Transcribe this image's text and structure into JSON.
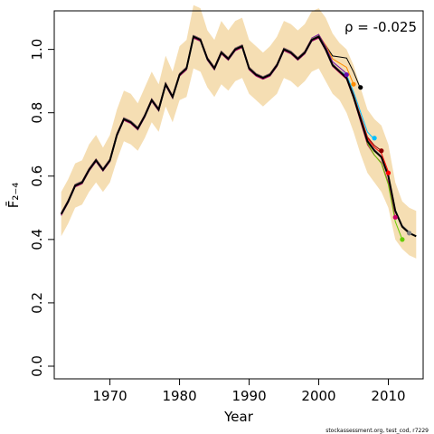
{
  "chart_data": {
    "type": "line",
    "ylabel": "F̄₂₋₄",
    "xlabel": "Year",
    "annotation": "ρ = -0.025",
    "footer": "stockassessment.org, test_cod, r7229",
    "xlim": [
      1962,
      2015
    ],
    "ylim": [
      0,
      1.15
    ],
    "xticks": [
      1970,
      1980,
      1990,
      2000,
      2010
    ],
    "yticks": [
      "0.0",
      "0.2",
      "0.4",
      "0.6",
      "0.8",
      "1.0"
    ],
    "colors": {
      "band": "#f5deb3",
      "main": "#000000",
      "peels": [
        "#6a0dad",
        "#e75480",
        "#ff8c00",
        "#00bfff",
        "#8b0000",
        "#ff0000",
        "#cc0066",
        "#66cc00",
        "#808080"
      ]
    },
    "x": [
      1963,
      1964,
      1965,
      1966,
      1967,
      1968,
      1969,
      1970,
      1971,
      1972,
      1973,
      1974,
      1975,
      1976,
      1977,
      1978,
      1979,
      1980,
      1981,
      1982,
      1983,
      1984,
      1985,
      1986,
      1987,
      1988,
      1989,
      1990,
      1991,
      1992,
      1993,
      1994,
      1995,
      1996,
      1997,
      1998,
      1999,
      2000,
      2001,
      2002,
      2003,
      2004,
      2005,
      2006,
      2007,
      2008,
      2009,
      2010,
      2011,
      2012,
      2013,
      2014
    ],
    "estimate": [
      0.48,
      0.52,
      0.57,
      0.58,
      0.62,
      0.65,
      0.62,
      0.65,
      0.73,
      0.78,
      0.77,
      0.75,
      0.79,
      0.84,
      0.81,
      0.89,
      0.85,
      0.92,
      0.94,
      1.04,
      1.03,
      0.97,
      0.94,
      0.99,
      0.97,
      1.0,
      1.01,
      0.94,
      0.92,
      0.91,
      0.92,
      0.95,
      1.0,
      0.99,
      0.97,
      0.99,
      1.03,
      1.04,
      1.0,
      0.95,
      0.93,
      0.91,
      0.85,
      0.78,
      0.71,
      0.68,
      0.66,
      0.6,
      0.49,
      0.44,
      0.42,
      0.41
    ],
    "lower": [
      0.41,
      0.45,
      0.5,
      0.51,
      0.55,
      0.58,
      0.55,
      0.58,
      0.65,
      0.71,
      0.7,
      0.68,
      0.72,
      0.77,
      0.74,
      0.82,
      0.77,
      0.84,
      0.85,
      0.94,
      0.93,
      0.88,
      0.85,
      0.89,
      0.87,
      0.9,
      0.91,
      0.86,
      0.84,
      0.82,
      0.84,
      0.86,
      0.91,
      0.9,
      0.88,
      0.9,
      0.93,
      0.94,
      0.9,
      0.86,
      0.84,
      0.8,
      0.74,
      0.67,
      0.61,
      0.58,
      0.55,
      0.5,
      0.4,
      0.37,
      0.35,
      0.34
    ],
    "upper": [
      0.55,
      0.59,
      0.64,
      0.65,
      0.7,
      0.73,
      0.69,
      0.73,
      0.81,
      0.87,
      0.86,
      0.83,
      0.88,
      0.93,
      0.89,
      0.98,
      0.93,
      1.01,
      1.03,
      1.14,
      1.13,
      1.06,
      1.03,
      1.09,
      1.06,
      1.09,
      1.1,
      1.03,
      1.01,
      0.99,
      1.01,
      1.04,
      1.09,
      1.08,
      1.06,
      1.08,
      1.12,
      1.13,
      1.1,
      1.05,
      1.02,
      1.0,
      0.95,
      0.88,
      0.81,
      0.78,
      0.76,
      0.7,
      0.58,
      0.52,
      0.5,
      0.49
    ],
    "peels": [
      {
        "end_year": 2006,
        "end_value": 0.88,
        "color": "#000000"
      },
      {
        "end_year": 2005,
        "end_value": 0.89,
        "color": "#ff8c00"
      },
      {
        "end_year": 2004,
        "end_value": 0.92,
        "color": "#6a0dad"
      },
      {
        "end_year": 2008,
        "end_value": 0.72,
        "color": "#00bfff"
      },
      {
        "end_year": 2009,
        "end_value": 0.68,
        "color": "#8b0000"
      },
      {
        "end_year": 2010,
        "end_value": 0.61,
        "color": "#ff0000"
      },
      {
        "end_year": 2011,
        "end_value": 0.47,
        "color": "#cc0066"
      },
      {
        "end_year": 2012,
        "end_value": 0.4,
        "color": "#66cc00"
      },
      {
        "end_year": 2013,
        "end_value": 0.42,
        "color": "#808080"
      }
    ]
  }
}
